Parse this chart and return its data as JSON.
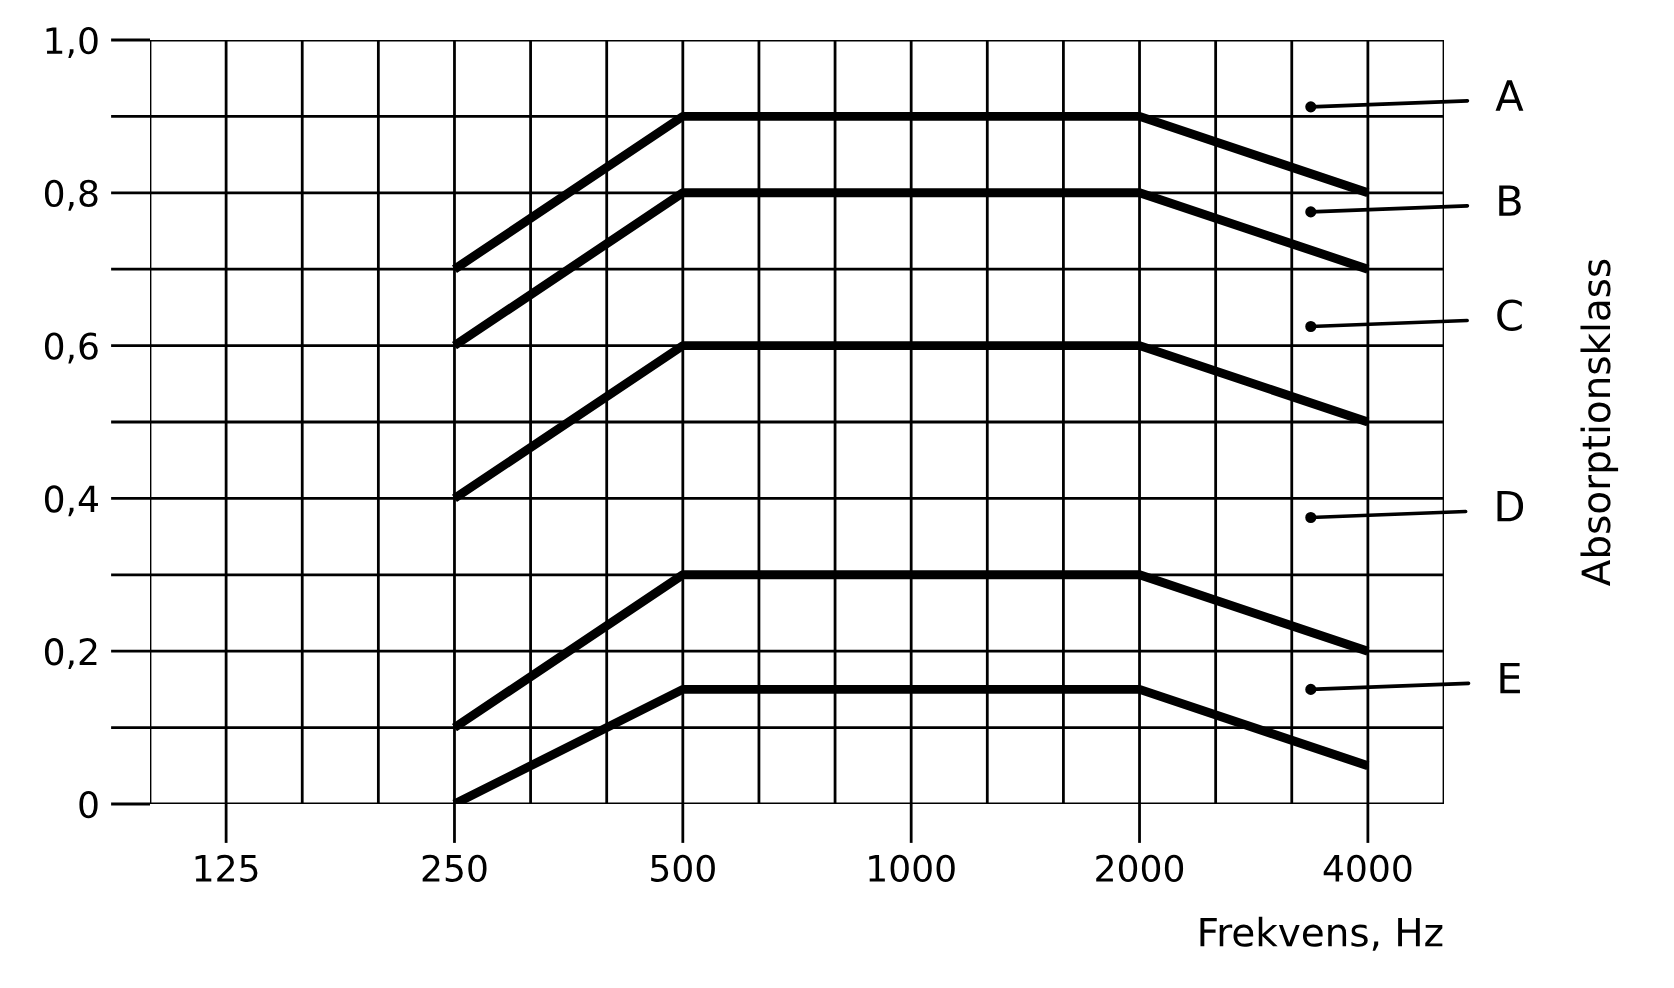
{
  "chart_data": {
    "type": "line",
    "xlabel": "Frekvens, Hz",
    "ylabel": "Absorptionsklass",
    "categories": [
      "125",
      "250",
      "500",
      "1000",
      "2000",
      "4000"
    ],
    "series": [
      {
        "color": "#000000",
        "values": [
          null,
          0.7,
          0.9,
          0.9,
          0.9,
          0.8
        ]
      },
      {
        "color": "#000000",
        "values": [
          null,
          0.6,
          0.8,
          0.8,
          0.8,
          0.7
        ]
      },
      {
        "color": "#000000",
        "values": [
          null,
          0.4,
          0.6,
          0.6,
          0.6,
          0.5
        ]
      },
      {
        "color": "#000000",
        "values": [
          null,
          0.1,
          0.3,
          0.3,
          0.3,
          0.2
        ]
      },
      {
        "color": "#000000",
        "values": [
          null,
          0,
          0.15,
          0.15,
          0.15,
          0.05
        ]
      }
    ],
    "ylim": [
      0,
      1
    ],
    "yticks": [
      0,
      {
        "value": 0.1,
        "label": null
      },
      {
        "value": 0.2,
        "label": "0,2"
      },
      {
        "value": 0.3,
        "label": null
      },
      {
        "value": 0.4,
        "label": "0,4"
      },
      {
        "value": 0.5,
        "label": null
      },
      {
        "value": 0.6,
        "label": "0,6"
      },
      {
        "value": 0.7,
        "label": null
      },
      {
        "value": 0.8,
        "label": "0,8"
      },
      {
        "value": 0.9,
        "label": null
      },
      {
        "value": 1.0,
        "label": "1,0"
      }
    ],
    "grid": true,
    "marker": "none",
    "line_style": "solid",
    "annotations": [
      "A",
      "B",
      "C",
      "D",
      "E"
    ]
  }
}
